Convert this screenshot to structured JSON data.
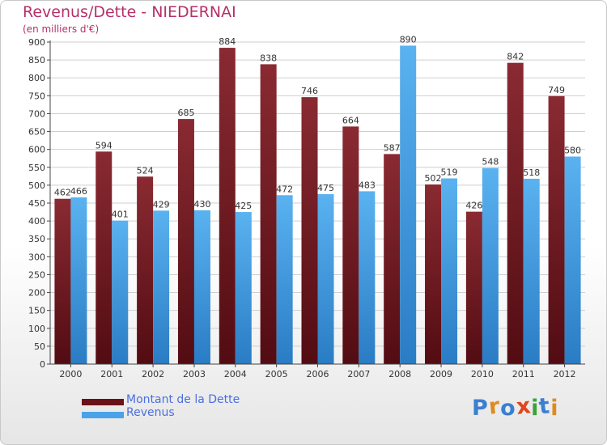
{
  "header": {
    "title": "Revenus/Dette - NIEDERNAI",
    "subtitle": "(en milliers d'€)"
  },
  "logo": {
    "text": "Proxiti",
    "letters": [
      "P",
      "r",
      "o",
      "x",
      "i",
      "t",
      "i"
    ],
    "colors": [
      "#3a7fd0",
      "#e08a1e",
      "#3a7fd0",
      "#e0461e",
      "#3aa23a",
      "#3a7fd0",
      "#e08a1e"
    ]
  },
  "chart_data": {
    "type": "bar",
    "categories": [
      "2000",
      "2001",
      "2002",
      "2003",
      "2004",
      "2005",
      "2006",
      "2007",
      "2008",
      "2009",
      "2010",
      "2011",
      "2012"
    ],
    "series": [
      {
        "name": "Montant de la Dette",
        "color": "#7a1f26",
        "values": [
          462,
          594,
          524,
          685,
          884,
          838,
          746,
          664,
          587,
          502,
          426,
          842,
          749
        ]
      },
      {
        "name": "Revenus",
        "color": "#4aa3e8",
        "values": [
          466,
          401,
          429,
          430,
          425,
          472,
          475,
          483,
          890,
          519,
          548,
          518,
          580
        ]
      }
    ],
    "title": "Revenus/Dette - NIEDERNAI",
    "ylabel": "(en milliers d'€)",
    "ylim": [
      0,
      900
    ],
    "ytick_step": 50,
    "grid": true,
    "legend": "bottom-left"
  }
}
